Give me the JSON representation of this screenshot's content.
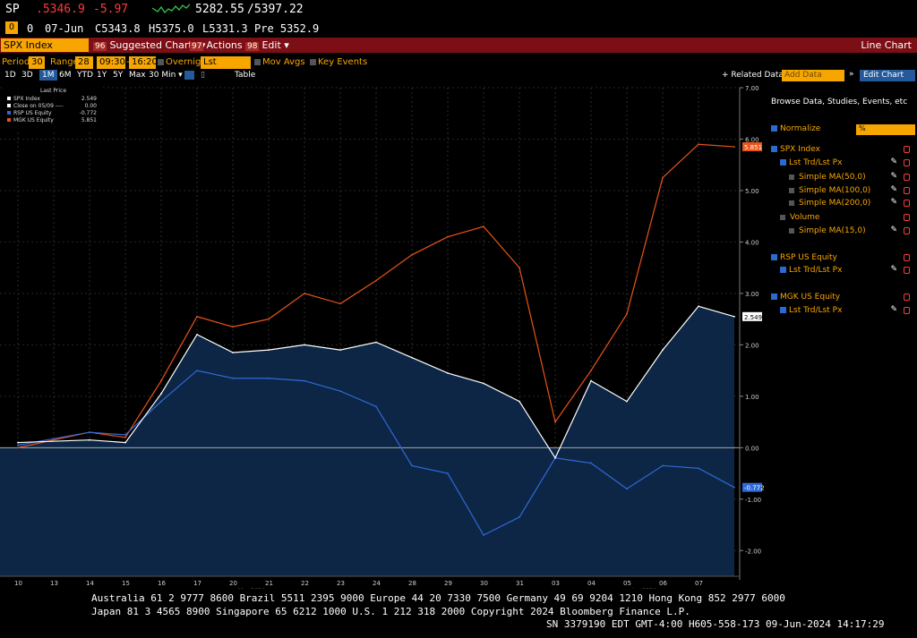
{
  "quote": {
    "ticker": "SP",
    "last": ".5346.9",
    "change": "-5.97",
    "range_low": "5282.55",
    "range_high": "/5397.22",
    "row2_open_mark": "O",
    "row2_zero": "0",
    "date": "07-Jun",
    "close": "C5343.8",
    "high": "H5375.0",
    "low": "L5331.3",
    "pre": "Pre 5352.9"
  },
  "menubar": {
    "ticker_box": "SPX Index",
    "suggested_num": "96",
    "suggested": "Suggested Charts",
    "actions_num": "97",
    "actions": "Actions",
    "edit_num": "98",
    "edit": "Edit",
    "title": "Line Chart"
  },
  "options": {
    "period_label": "Period",
    "period_value": "30",
    "range_label": "Range",
    "range_value": "28",
    "range_from": "09:30",
    "range_to": "16:20",
    "overnight": "Overnight",
    "price_field": "Lst Trd/Lst P",
    "mov_avgs": "Mov Avgs",
    "key_events": "Key Events",
    "periods": [
      "1D",
      "3D",
      "1M",
      "6M",
      "YTD",
      "1Y",
      "5Y",
      "Max",
      "30 Min ▾"
    ],
    "table": "Table",
    "related_data": "+ Related Data ▾",
    "add_data_placeholder": "Add Data",
    "edit_chart": "Edit Chart"
  },
  "legend": {
    "header": "Last Price",
    "items": [
      {
        "name": "SPX Index",
        "value": "2.549",
        "color": "#ffffff"
      },
      {
        "name": "Close on 05/09 ----",
        "value": "0.00",
        "color": "#ffffff"
      },
      {
        "name": "RSP US Equity",
        "value": "-0.772",
        "color": "#2f6ad8"
      },
      {
        "name": "MGK US Equity",
        "value": "5.851",
        "color": "#e8541a"
      }
    ]
  },
  "sidebar": {
    "browse": "Browse Data, Studies, Events, etc",
    "normalize": "Normalize",
    "normalize_value": "%",
    "items": [
      {
        "label": "SPX Index",
        "checked": true,
        "indent": 0
      },
      {
        "label": "Lst Trd/Lst Px",
        "checked": true,
        "indent": 1
      },
      {
        "label": "Simple MA(50,0)",
        "checked": false,
        "indent": 2
      },
      {
        "label": "Simple MA(100,0)",
        "checked": false,
        "indent": 2
      },
      {
        "label": "Simple MA(200,0)",
        "checked": false,
        "indent": 2
      },
      {
        "label": "Volume",
        "checked": false,
        "indent": 1
      },
      {
        "label": "Simple MA(15,0)",
        "checked": false,
        "indent": 2
      },
      {
        "label": "RSP US Equity",
        "checked": true,
        "indent": 0
      },
      {
        "label": "Lst Trd/Lst Px",
        "checked": true,
        "indent": 1
      },
      {
        "label": "MGK US Equity",
        "checked": true,
        "indent": 0
      },
      {
        "label": "Lst Trd/Lst Px",
        "checked": true,
        "indent": 1
      }
    ]
  },
  "chart_data": {
    "type": "line",
    "title": "",
    "xlabel": "",
    "ylabel": "",
    "ylim": [
      -2.5,
      7.0
    ],
    "grid": true,
    "legend_placement": "top-left",
    "y_ticks": [
      "7.00",
      "6.00",
      "5.00",
      "4.00",
      "3.00",
      "2.00",
      "1.00",
      "0.00",
      "-1.00",
      "-2.00"
    ],
    "x_ticks": [
      "10",
      "13",
      "14",
      "15",
      "16",
      "17",
      "20",
      "21",
      "22",
      "23",
      "24",
      "28",
      "29",
      "30",
      "31",
      "03",
      "04",
      "05",
      "06",
      "07"
    ],
    "x_month_labels": [
      "May 2024",
      "Jun 2024"
    ],
    "reference_line": {
      "name": "Close on 05/09",
      "value": 0.0
    },
    "series": [
      {
        "name": "SPX Index",
        "color": "#ffffff",
        "fill": "#0d2645",
        "last_value_label": "2.549",
        "x": [
          0,
          2,
          3,
          4,
          5,
          6,
          7,
          8,
          9,
          10,
          11,
          12,
          13,
          14,
          15,
          16,
          17,
          18,
          19,
          20
        ],
        "values": [
          0.1,
          0.15,
          0.1,
          1.05,
          2.2,
          1.85,
          1.9,
          2.0,
          1.9,
          2.05,
          1.75,
          1.45,
          1.25,
          0.9,
          -0.2,
          1.3,
          0.9,
          1.9,
          2.75,
          2.549
        ]
      },
      {
        "name": "RSP US Equity",
        "color": "#2f6ad8",
        "last_value_label": "-0.772",
        "x": [
          0,
          2,
          3,
          4,
          5,
          6,
          7,
          8,
          9,
          10,
          11,
          12,
          13,
          14,
          15,
          16,
          17,
          18,
          19,
          20
        ],
        "values": [
          0.05,
          0.3,
          0.25,
          0.9,
          1.5,
          1.35,
          1.35,
          1.3,
          1.1,
          0.8,
          -0.35,
          -0.5,
          -1.7,
          -1.35,
          -0.2,
          -0.3,
          -0.8,
          -0.35,
          -0.4,
          -0.772
        ]
      },
      {
        "name": "MGK US Equity",
        "color": "#e8541a",
        "last_value_label": "5.851",
        "x": [
          0,
          2,
          3,
          4,
          5,
          6,
          7,
          8,
          9,
          10,
          11,
          12,
          13,
          14,
          15,
          16,
          17,
          18,
          19,
          20
        ],
        "values": [
          0.0,
          0.3,
          0.2,
          1.3,
          2.55,
          2.35,
          2.5,
          3.0,
          2.8,
          3.25,
          3.75,
          4.1,
          4.3,
          3.5,
          0.5,
          1.5,
          2.6,
          5.25,
          5.9,
          5.851
        ]
      }
    ]
  },
  "footer": {
    "line1": "Australia 61 2 9777 8600 Brazil 5511 2395 9000 Europe 44 20 7330 7500 Germany 49 69 9204 1210 Hong Kong 852 2977 6000",
    "line2": "Japan 81 3 4565 8900        Singapore 65 6212 1000       U.S. 1 212 318 2000        Copyright 2024 Bloomberg Finance L.P.",
    "line3": "SN 3379190 EDT  GMT-4:00 H605-558-173 09-Jun-2024  14:17:29"
  }
}
